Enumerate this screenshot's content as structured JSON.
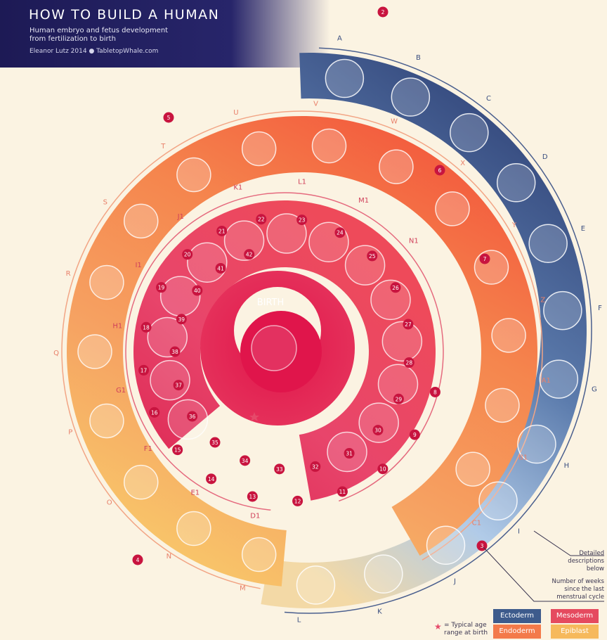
{
  "header": {
    "title": "HOW TO BUILD A HUMAN",
    "subtitle_line1": "Human embryo and fetus development",
    "subtitle_line2": "from fertilization to birth",
    "credit": "Eleanor Lutz 2014 ● TabletopWhale.com"
  },
  "center_label": "BIRTH",
  "notes": {
    "detailed_line1": "Detailed",
    "detailed_line2": "descriptions",
    "detailed_line3": "below",
    "weeks_line1": "Number of weeks",
    "weeks_line2": "since the last",
    "weeks_line3": "menstrual cycle",
    "star_line1": "= Typical age",
    "star_line2": "range at birth"
  },
  "legend": [
    {
      "label": "Ectoderm",
      "color": "#3d5b8c"
    },
    {
      "label": "Mesoderm",
      "color": "#e54a5f"
    },
    {
      "label": "Endoderm",
      "color": "#f37a4a"
    },
    {
      "label": "Epiblast",
      "color": "#f6b95c"
    }
  ],
  "stage_letters": [
    "A",
    "B",
    "C",
    "D",
    "E",
    "F",
    "G",
    "H",
    "I",
    "J",
    "K",
    "L",
    "M",
    "N",
    "O",
    "P",
    "Q",
    "R",
    "S",
    "T",
    "U",
    "V",
    "W",
    "X",
    "Y",
    "Z",
    "A1",
    "B1",
    "C1",
    "D1",
    "E1",
    "F1",
    "G1",
    "H1",
    "I1",
    "J1",
    "K1",
    "L1",
    "M1",
    "N1"
  ],
  "week_numbers": [
    "2",
    "3",
    "4",
    "5",
    "6",
    "7",
    "8",
    "9",
    "10",
    "11",
    "12",
    "13",
    "14",
    "15",
    "16",
    "17",
    "18",
    "19",
    "20",
    "21",
    "22",
    "23",
    "24",
    "25",
    "26",
    "27",
    "28",
    "29",
    "30",
    "31",
    "32",
    "33",
    "34",
    "35",
    "36",
    "37",
    "38",
    "39",
    "40",
    "41",
    "42"
  ],
  "colors": {
    "ring_ectoderm_top": "#2c3e73",
    "ring_ectoderm_mid": "#5a78a8",
    "ring_ectoderm_light": "#a9c6e8",
    "ring_epiblast": "#f5cc80",
    "ring_endoderm": "#f58a55",
    "ring_mesoderm": "#e8435e",
    "ring_inner": "#e0154b",
    "background": "#fbf3e2"
  }
}
